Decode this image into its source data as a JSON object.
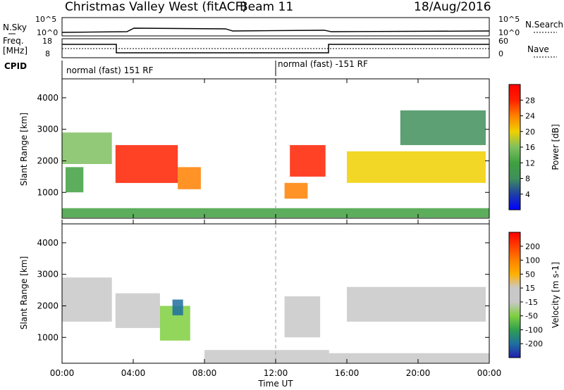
{
  "header": {
    "site": "Christmas Valley West (fitACF)",
    "beam": "Beam 11",
    "date": "18/Aug/2016"
  },
  "strips": {
    "nsky_label": "N.Sky",
    "nsearch_label": "N.Search",
    "noise_ticks": [
      "10^5",
      "10^0"
    ],
    "freq_label": "Freq.",
    "freq_unit": "[MHz]",
    "freq_ticks": [
      "18",
      "8"
    ],
    "nave_label": "Nave",
    "nave_ticks": [
      "60",
      "0"
    ],
    "cpid_label": "CPID",
    "cpid_segments": [
      "normal (fast) 151 RF",
      "normal (fast) -151 RF"
    ]
  },
  "colors": {
    "power_scale": [
      "#0000ff",
      "#1f3fa6",
      "#3f8f5a",
      "#3fa040",
      "#7fc060",
      "#f0d000",
      "#ff8000",
      "#ff2000",
      "#ff0000"
    ],
    "velocity_scale": [
      "#1f1fb0",
      "#1f6fa0",
      "#2f9f4f",
      "#7fcf3f",
      "#c8c8c8",
      "#c8c8c8",
      "#ffb000",
      "#ff8000",
      "#ff4000",
      "#ff0000"
    ],
    "ground_scatter": "#c0c0c0"
  },
  "chart_data": [
    {
      "type": "heatmap",
      "panel": "power",
      "ylabel": "Slant Range [km]",
      "yticks": [
        "4000",
        "3000",
        "2000",
        "1000"
      ],
      "ylim": [
        180,
        4600
      ],
      "colorbar_label": "Power [dB]",
      "colorbar_ticks": [
        "28",
        "24",
        "20",
        "16",
        "12",
        "8",
        "4"
      ],
      "colorbar_range": [
        0,
        32
      ],
      "regions": [
        {
          "t": [
            0.0,
            2.8
          ],
          "r": [
            1900,
            2900
          ],
          "value": 16
        },
        {
          "t": [
            0.2,
            1.2
          ],
          "r": [
            1000,
            1800
          ],
          "value": 14
        },
        {
          "t": [
            3.0,
            6.5
          ],
          "r": [
            1300,
            2500
          ],
          "value": 28
        },
        {
          "t": [
            6.5,
            7.8
          ],
          "r": [
            1100,
            1800
          ],
          "value": 22
        },
        {
          "t": [
            12.8,
            14.8
          ],
          "r": [
            1500,
            2500
          ],
          "value": 26
        },
        {
          "t": [
            12.5,
            13.8
          ],
          "r": [
            800,
            1300
          ],
          "value": 24
        },
        {
          "t": [
            16.0,
            23.8
          ],
          "r": [
            1300,
            2300
          ],
          "value": 18
        },
        {
          "t": [
            19.0,
            23.8
          ],
          "r": [
            2500,
            3600
          ],
          "value": 10
        },
        {
          "t": [
            0.0,
            24.0
          ],
          "r": [
            200,
            500
          ],
          "value": 12
        }
      ]
    },
    {
      "type": "heatmap",
      "panel": "velocity",
      "ylabel": "Slant Range [km]",
      "yticks": [
        "4000",
        "3000",
        "2000",
        "1000"
      ],
      "ylim": [
        180,
        4600
      ],
      "colorbar_label": "Velocity [m s-1]",
      "colorbar_ticks": [
        "200",
        "100",
        "50",
        "15",
        "-15",
        "-50",
        "-100",
        "-200"
      ],
      "colorbar_range": [
        -250,
        250
      ],
      "xlabel": "Time UT",
      "xticks": [
        "00:00",
        "04:00",
        "08:00",
        "12:00",
        "16:00",
        "20:00",
        "00:00"
      ],
      "xlim": [
        0,
        24
      ],
      "regions": [
        {
          "t": [
            0.0,
            2.8
          ],
          "r": [
            1500,
            2900
          ],
          "value": 0
        },
        {
          "t": [
            3.0,
            5.5
          ],
          "r": [
            1300,
            2400
          ],
          "value": 0
        },
        {
          "t": [
            5.5,
            7.2
          ],
          "r": [
            900,
            2000
          ],
          "value": -100
        },
        {
          "t": [
            6.2,
            6.8
          ],
          "r": [
            1700,
            2200
          ],
          "value": -200
        },
        {
          "t": [
            12.5,
            14.5
          ],
          "r": [
            1000,
            2300
          ],
          "value": 0
        },
        {
          "t": [
            16.0,
            23.8
          ],
          "r": [
            1500,
            2600
          ],
          "value": 0
        },
        {
          "t": [
            8.0,
            15.0
          ],
          "r": [
            200,
            600
          ],
          "value": -30
        },
        {
          "t": [
            15.0,
            24.0
          ],
          "r": [
            200,
            500
          ],
          "value": 40
        }
      ]
    }
  ]
}
